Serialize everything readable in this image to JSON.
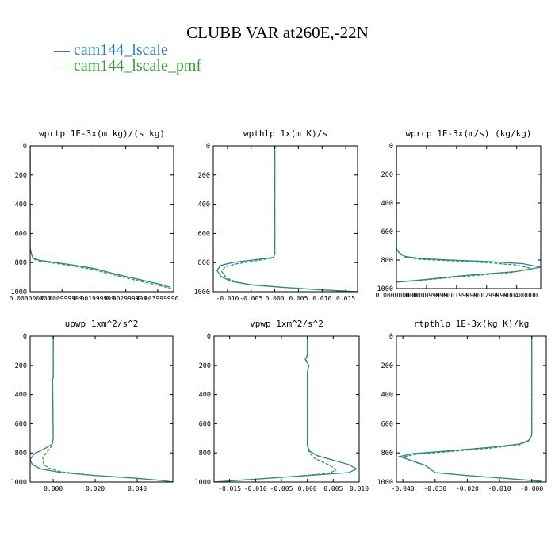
{
  "title": "CLUBB VAR at260E,-22N",
  "legend": [
    {
      "name": "cam144_lscale",
      "color": "#2b7bba"
    },
    {
      "name": "cam144_lscale_pmf",
      "color": "#2ca02c"
    }
  ],
  "chart_data": [
    {
      "type": "line",
      "title": "wprtp  1E-3x(m kg)/(s kg)",
      "xlim": [
        0,
        0.0045
      ],
      "ylim": [
        1000,
        0
      ],
      "xticks": [
        0,
        0.001,
        0.002,
        0.003,
        0.004
      ],
      "xtick_labels": [
        "0.000000000",
        "0.000999999",
        "0.001999999",
        "0.002999999",
        "0.003999990"
      ],
      "yticks": [
        0,
        200,
        400,
        600,
        800,
        1000
      ],
      "series": [
        {
          "name": "cam144_lscale",
          "color": "#2b7bba",
          "dashed": false,
          "x": [
            0,
            0,
            5e-05,
            0.0001,
            0.0003,
            0.0008,
            0.0013,
            0.002,
            0.0027,
            0.0033,
            0.0038,
            0.0042,
            0.0044
          ],
          "y": [
            0,
            700,
            745,
            770,
            785,
            800,
            815,
            840,
            880,
            910,
            935,
            955,
            970
          ]
        },
        {
          "name": "cam144_lscale_pmf",
          "color": "#2ca02c",
          "dashed": true,
          "x": [
            0,
            0,
            5e-05,
            0.0001,
            0.0003,
            0.0008,
            0.0013,
            0.002,
            0.0027,
            0.0033,
            0.0038,
            0.0042,
            0.0045
          ],
          "y": [
            0,
            700,
            750,
            775,
            790,
            805,
            822,
            848,
            888,
            920,
            945,
            965,
            985
          ]
        }
      ]
    },
    {
      "type": "line",
      "title": "wpthlp  1x(m K)/s",
      "xlim": [
        -0.013,
        0.0175
      ],
      "ylim": [
        1000,
        0
      ],
      "xticks": [
        -0.01,
        -0.005,
        0,
        0.005,
        0.01,
        0.015
      ],
      "xtick_labels": [
        "-0.010",
        "-0.005",
        "0.000",
        "0.005",
        "0.010",
        "0.015"
      ],
      "yticks": [
        0,
        200,
        400,
        600,
        800,
        1000
      ],
      "series": [
        {
          "name": "cam144_lscale",
          "color": "#2b7bba",
          "dashed": false,
          "x": [
            0,
            0,
            -0.0003,
            -0.004,
            -0.009,
            -0.0115,
            -0.0122,
            -0.0112,
            -0.009,
            -0.005,
            0.002,
            0.009,
            0.0175
          ],
          "y": [
            0,
            740,
            765,
            780,
            800,
            820,
            855,
            900,
            930,
            952,
            970,
            985,
            1000
          ]
        },
        {
          "name": "cam144_lscale_pmf",
          "color": "#2ca02c",
          "dashed": true,
          "x": [
            0,
            0,
            -0.0003,
            -0.0035,
            -0.008,
            -0.0105,
            -0.0112,
            -0.0102,
            -0.0082,
            -0.0045,
            0.0025,
            0.0095,
            0.0175
          ],
          "y": [
            0,
            740,
            768,
            785,
            808,
            830,
            862,
            905,
            933,
            955,
            972,
            987,
            1000
          ]
        }
      ]
    },
    {
      "type": "line",
      "title": "wprcp  1E-3x(m/s) (kg/kg)",
      "xlim": [
        0,
        0.00048
      ],
      "ylim": [
        1000,
        0
      ],
      "xticks": [
        0,
        0.0001,
        0.0002,
        0.0003,
        0.0004
      ],
      "xtick_labels": [
        "0.000000000",
        "0.000099999",
        "0.000199999",
        "0.000299999",
        "0.000400000"
      ],
      "yticks": [
        0,
        200,
        400,
        600,
        800,
        1000
      ],
      "series": [
        {
          "name": "cam144_lscale",
          "color": "#2b7bba",
          "dashed": false,
          "x": [
            0,
            0,
            1e-05,
            3e-05,
            8e-05,
            0.00018,
            0.0003,
            0.00042,
            0.00048,
            0.0004,
            0.00022,
            8e-05,
            0
          ],
          "y": [
            0,
            720,
            750,
            775,
            790,
            800,
            810,
            825,
            850,
            880,
            910,
            940,
            955
          ]
        },
        {
          "name": "cam144_lscale_pmf",
          "color": "#2ca02c",
          "dashed": true,
          "x": [
            0,
            0,
            1e-05,
            3e-05,
            8e-05,
            0.00018,
            0.0003,
            0.0004,
            0.00045,
            0.00038,
            0.00022,
            8e-05,
            0
          ],
          "y": [
            0,
            720,
            755,
            780,
            795,
            805,
            818,
            835,
            860,
            888,
            915,
            942,
            955
          ]
        }
      ]
    },
    {
      "type": "line",
      "title": "upwp  1xm^2/s^2",
      "xlim": [
        -0.011,
        0.057
      ],
      "ylim": [
        1000,
        0
      ],
      "xticks": [
        0,
        0.02,
        0.04
      ],
      "xtick_labels": [
        "0.000",
        "0.020",
        "0.040"
      ],
      "yticks": [
        0,
        200,
        400,
        600,
        800,
        1000
      ],
      "series": [
        {
          "name": "cam144_lscale",
          "color": "#2b7bba",
          "dashed": false,
          "x": [
            0,
            0,
            -0.0003,
            0,
            -0.0005,
            -0.004,
            -0.009,
            -0.011,
            -0.01,
            -0.006,
            0.004,
            0.02,
            0.038,
            0.052,
            0.057
          ],
          "y": [
            0,
            280,
            300,
            700,
            740,
            770,
            805,
            845,
            880,
            910,
            935,
            955,
            972,
            990,
            1000
          ]
        },
        {
          "name": "cam144_lscale_pmf",
          "color": "#2ca02c",
          "dashed": true,
          "x": [
            0,
            0,
            -0.0003,
            0,
            -0.0005,
            -0.0025,
            -0.005,
            -0.0045,
            -0.002,
            0.004,
            0.02,
            0.038,
            0.052,
            0.057
          ],
          "y": [
            0,
            280,
            300,
            700,
            750,
            785,
            830,
            880,
            905,
            930,
            955,
            972,
            990,
            1000
          ]
        }
      ]
    },
    {
      "type": "line",
      "title": "vpwp  1xm^2/s^2",
      "xlim": [
        -0.018,
        0.01
      ],
      "ylim": [
        1000,
        0
      ],
      "xticks": [
        -0.015,
        -0.01,
        -0.005,
        0,
        0.005,
        0.01
      ],
      "xtick_labels": [
        "-0.015",
        "-0.010",
        "-0.005",
        "0.000",
        "0.005",
        "0.010"
      ],
      "yticks": [
        0,
        200,
        400,
        600,
        800,
        1000
      ],
      "series": [
        {
          "name": "cam144_lscale",
          "color": "#2b7bba",
          "dashed": false,
          "x": [
            0,
            0,
            -0.0004,
            0.0003,
            0,
            0,
            0.0005,
            0.002,
            0.005,
            0.008,
            0.0095,
            0.008,
            0.0,
            -0.008,
            -0.014,
            -0.018
          ],
          "y": [
            0,
            130,
            160,
            200,
            250,
            750,
            790,
            820,
            850,
            880,
            910,
            935,
            955,
            975,
            990,
            1000
          ]
        },
        {
          "name": "cam144_lscale_pmf",
          "color": "#2ca02c",
          "dashed": true,
          "x": [
            0,
            0,
            -0.0003,
            0.0003,
            0,
            0,
            0.0004,
            0.0015,
            0.0035,
            0.005,
            0.0055,
            0.004,
            -0.002,
            -0.009,
            -0.015,
            -0.018
          ],
          "y": [
            0,
            130,
            160,
            200,
            250,
            750,
            800,
            840,
            870,
            900,
            920,
            940,
            960,
            978,
            992,
            1000
          ]
        }
      ]
    },
    {
      "type": "line",
      "title": "rtpthlp  1E-3x(kg K)/kg",
      "xlim": [
        -0.042,
        0.0045
      ],
      "ylim": [
        1000,
        0
      ],
      "xticks": [
        -0.04,
        -0.03,
        -0.02,
        -0.01,
        0
      ],
      "xtick_labels": [
        "-0.040",
        "-0.030",
        "-0.020",
        "-0.010",
        "-0.000"
      ],
      "yticks": [
        0,
        200,
        400,
        600,
        800,
        1000
      ],
      "series": [
        {
          "name": "cam144_lscale",
          "color": "#2b7bba",
          "dashed": false,
          "x": [
            0,
            0,
            -0.001,
            -0.004,
            -0.012,
            -0.025,
            -0.037,
            -0.041,
            -0.037,
            -0.033,
            -0.03,
            -0.02,
            -0.008,
            0.003
          ],
          "y": [
            0,
            680,
            715,
            740,
            760,
            785,
            805,
            825,
            855,
            885,
            935,
            955,
            975,
            995
          ]
        },
        {
          "name": "cam144_lscale_pmf",
          "color": "#2ca02c",
          "dashed": true,
          "x": [
            0,
            0,
            -0.001,
            -0.004,
            -0.012,
            -0.025,
            -0.036,
            -0.04,
            -0.037,
            -0.033,
            -0.03,
            -0.02,
            -0.008,
            0.003
          ],
          "y": [
            0,
            680,
            718,
            745,
            765,
            790,
            810,
            828,
            857,
            887,
            935,
            955,
            975,
            995
          ]
        }
      ]
    }
  ]
}
